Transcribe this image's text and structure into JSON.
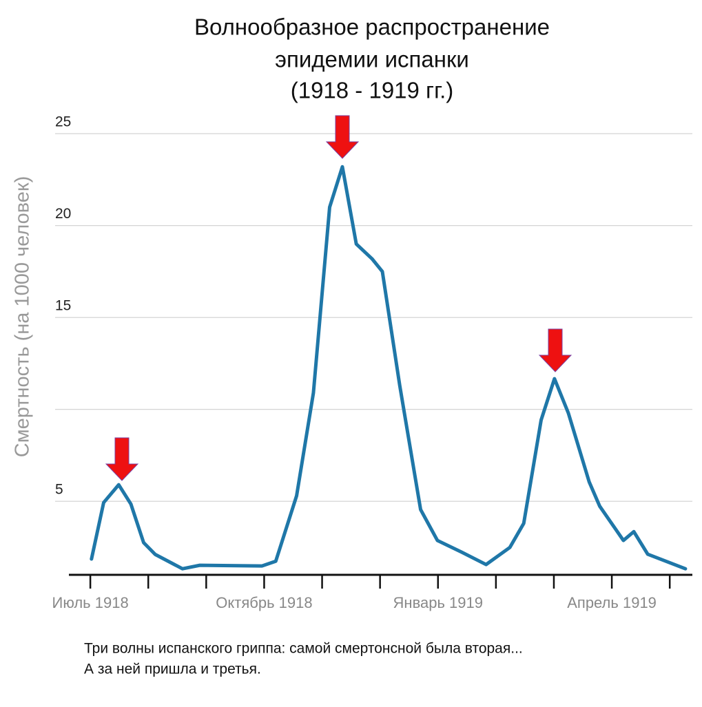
{
  "chart_data": {
    "type": "line",
    "title": [
      "Волнообразное распространение",
      "эпидемии испанки",
      "(1918 - 1919 гг.)"
    ],
    "ylabel": "Смертность (на 1000 человек)",
    "note": [
      "Три волны испанского гриппа: самой смертонсной была вторая...",
      "А за ней пришла и третья."
    ],
    "xlim": [
      -0.37,
      10.39
    ],
    "ylim": [
      1,
      26
    ],
    "yticks": [
      5,
      15,
      20,
      25
    ],
    "ygrid": [
      5,
      10,
      15,
      20,
      25
    ],
    "xticks": [
      {
        "value": 0,
        "label": "Июль 1918"
      },
      {
        "value": 3,
        "label": "Октябрь 1918"
      },
      {
        "value": 6,
        "label": "Январь 1919"
      },
      {
        "value": 9,
        "label": "Апрель 1919"
      }
    ],
    "xminor": [
      1,
      2,
      4,
      5,
      7,
      8,
      10
    ],
    "series": [
      {
        "color": "#1f77a8",
        "x": [
          0.02,
          0.23,
          0.49,
          0.7,
          0.92,
          1.12,
          1.59,
          1.89,
          2.96,
          3.2,
          3.56,
          3.85,
          4.13,
          4.35,
          4.59,
          4.86,
          5.04,
          5.34,
          5.7,
          5.99,
          6.41,
          6.83,
          7.24,
          7.48,
          7.78,
          8.01,
          8.25,
          8.61,
          8.79,
          9.2,
          9.38,
          9.62,
          10.27
        ],
        "values": [
          1.86,
          4.93,
          5.9,
          4.85,
          2.75,
          2.11,
          1.33,
          1.52,
          1.48,
          1.74,
          5.3,
          10.9,
          21.0,
          23.2,
          19.0,
          18.2,
          17.5,
          11.3,
          4.55,
          2.87,
          2.23,
          1.56,
          2.49,
          3.8,
          9.42,
          11.67,
          9.8,
          6.05,
          4.74,
          2.87,
          3.35,
          2.12,
          1.33
        ]
      }
    ]
  }
}
